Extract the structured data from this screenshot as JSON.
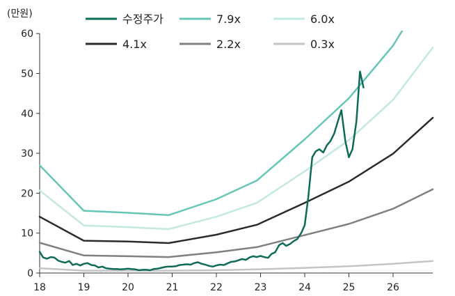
{
  "chart_data": {
    "type": "line",
    "unit_label": "(만원)",
    "xlim": [
      18,
      26.9
    ],
    "ylim": [
      0,
      60
    ],
    "x_ticks": [
      "18",
      "19",
      "20",
      "21",
      "22",
      "23",
      "24",
      "25",
      "26"
    ],
    "y_ticks": [
      "0",
      "10",
      "20",
      "30",
      "40",
      "50",
      "60"
    ],
    "grid": false,
    "legend_position": "top",
    "series": [
      {
        "name": "수정주가",
        "color": "#0e6b58",
        "width": 2.5,
        "points": [
          [
            18.0,
            5.3
          ],
          [
            18.08,
            3.9
          ],
          [
            18.17,
            3.6
          ],
          [
            18.25,
            4.0
          ],
          [
            18.33,
            3.9
          ],
          [
            18.42,
            3.1
          ],
          [
            18.5,
            2.8
          ],
          [
            18.58,
            2.6
          ],
          [
            18.67,
            3.0
          ],
          [
            18.75,
            2.0
          ],
          [
            18.83,
            2.3
          ],
          [
            18.92,
            1.9
          ],
          [
            19.0,
            2.3
          ],
          [
            19.08,
            2.5
          ],
          [
            19.17,
            2.0
          ],
          [
            19.25,
            1.9
          ],
          [
            19.33,
            1.4
          ],
          [
            19.42,
            1.6
          ],
          [
            19.5,
            1.2
          ],
          [
            19.58,
            1.1
          ],
          [
            19.67,
            1.0
          ],
          [
            19.75,
            1.0
          ],
          [
            19.83,
            0.9
          ],
          [
            19.92,
            1.0
          ],
          [
            20.0,
            1.1
          ],
          [
            20.08,
            1.0
          ],
          [
            20.17,
            0.9
          ],
          [
            20.25,
            0.7
          ],
          [
            20.33,
            0.8
          ],
          [
            20.42,
            0.8
          ],
          [
            20.5,
            0.7
          ],
          [
            20.58,
            1.0
          ],
          [
            20.67,
            1.1
          ],
          [
            20.75,
            1.3
          ],
          [
            20.83,
            1.5
          ],
          [
            20.92,
            1.6
          ],
          [
            21.0,
            1.6
          ],
          [
            21.08,
            1.7
          ],
          [
            21.17,
            2.0
          ],
          [
            21.25,
            2.1
          ],
          [
            21.33,
            2.2
          ],
          [
            21.42,
            2.1
          ],
          [
            21.5,
            2.5
          ],
          [
            21.58,
            2.7
          ],
          [
            21.67,
            2.3
          ],
          [
            21.75,
            2.1
          ],
          [
            21.83,
            1.8
          ],
          [
            21.92,
            1.6
          ],
          [
            22.0,
            1.9
          ],
          [
            22.08,
            2.1
          ],
          [
            22.17,
            2.0
          ],
          [
            22.25,
            2.4
          ],
          [
            22.33,
            2.8
          ],
          [
            22.42,
            2.9
          ],
          [
            22.5,
            3.2
          ],
          [
            22.58,
            3.5
          ],
          [
            22.67,
            3.3
          ],
          [
            22.75,
            3.9
          ],
          [
            22.83,
            4.2
          ],
          [
            22.92,
            4.0
          ],
          [
            23.0,
            4.3
          ],
          [
            23.08,
            4.0
          ],
          [
            23.17,
            3.8
          ],
          [
            23.25,
            4.8
          ],
          [
            23.33,
            5.2
          ],
          [
            23.42,
            7.0
          ],
          [
            23.5,
            7.5
          ],
          [
            23.58,
            6.8
          ],
          [
            23.67,
            7.3
          ],
          [
            23.75,
            8.0
          ],
          [
            23.83,
            8.5
          ],
          [
            23.92,
            10.0
          ],
          [
            24.0,
            12.0
          ],
          [
            24.08,
            19.0
          ],
          [
            24.17,
            29.0
          ],
          [
            24.25,
            30.5
          ],
          [
            24.33,
            31.0
          ],
          [
            24.42,
            30.2
          ],
          [
            24.5,
            32.0
          ],
          [
            24.58,
            33.0
          ],
          [
            24.67,
            35.0
          ],
          [
            24.75,
            38.0
          ],
          [
            24.83,
            40.8
          ],
          [
            24.92,
            33.0
          ],
          [
            25.0,
            29.0
          ],
          [
            25.08,
            31.0
          ],
          [
            25.17,
            38.0
          ],
          [
            25.25,
            50.5
          ],
          [
            25.33,
            46.5
          ]
        ]
      },
      {
        "name": "7.9x",
        "color": "#66c6b5",
        "width": 2.5,
        "points": [
          [
            18.0,
            27.0
          ],
          [
            19.0,
            15.6
          ],
          [
            20.0,
            15.1
          ],
          [
            20.92,
            14.5
          ],
          [
            22.0,
            18.5
          ],
          [
            22.92,
            23.2
          ],
          [
            24.0,
            33.5
          ],
          [
            25.0,
            43.8
          ],
          [
            26.0,
            57.0
          ],
          [
            26.5,
            66.0
          ]
        ]
      },
      {
        "name": "6.0x",
        "color": "#c2e9e1",
        "width": 2.5,
        "points": [
          [
            18.0,
            20.7
          ],
          [
            19.0,
            11.9
          ],
          [
            20.0,
            11.5
          ],
          [
            20.92,
            11.0
          ],
          [
            22.0,
            14.1
          ],
          [
            22.92,
            17.6
          ],
          [
            24.0,
            25.5
          ],
          [
            25.0,
            33.3
          ],
          [
            26.0,
            43.4
          ],
          [
            26.9,
            56.5
          ]
        ]
      },
      {
        "name": "4.1x",
        "color": "#2b2b2b",
        "width": 2.5,
        "points": [
          [
            18.0,
            14.1
          ],
          [
            19.0,
            8.1
          ],
          [
            20.0,
            7.9
          ],
          [
            20.92,
            7.5
          ],
          [
            22.0,
            9.6
          ],
          [
            22.92,
            12.1
          ],
          [
            24.0,
            17.6
          ],
          [
            25.0,
            22.9
          ],
          [
            26.0,
            29.9
          ],
          [
            26.9,
            38.9
          ]
        ]
      },
      {
        "name": "2.2x",
        "color": "#808080",
        "width": 2.5,
        "points": [
          [
            18.0,
            7.6
          ],
          [
            19.0,
            4.4
          ],
          [
            20.0,
            4.2
          ],
          [
            20.92,
            4.0
          ],
          [
            22.0,
            5.2
          ],
          [
            22.92,
            6.5
          ],
          [
            24.0,
            9.5
          ],
          [
            25.0,
            12.3
          ],
          [
            26.0,
            16.1
          ],
          [
            26.9,
            21.0
          ]
        ]
      },
      {
        "name": "0.3x",
        "color": "#c4c4c4",
        "width": 2.5,
        "points": [
          [
            18.0,
            1.2
          ],
          [
            19.0,
            0.6
          ],
          [
            20.0,
            0.6
          ],
          [
            20.92,
            0.6
          ],
          [
            22.0,
            0.7
          ],
          [
            22.92,
            0.9
          ],
          [
            24.0,
            1.3
          ],
          [
            25.0,
            1.7
          ],
          [
            26.0,
            2.3
          ],
          [
            26.9,
            3.0
          ]
        ]
      }
    ]
  }
}
